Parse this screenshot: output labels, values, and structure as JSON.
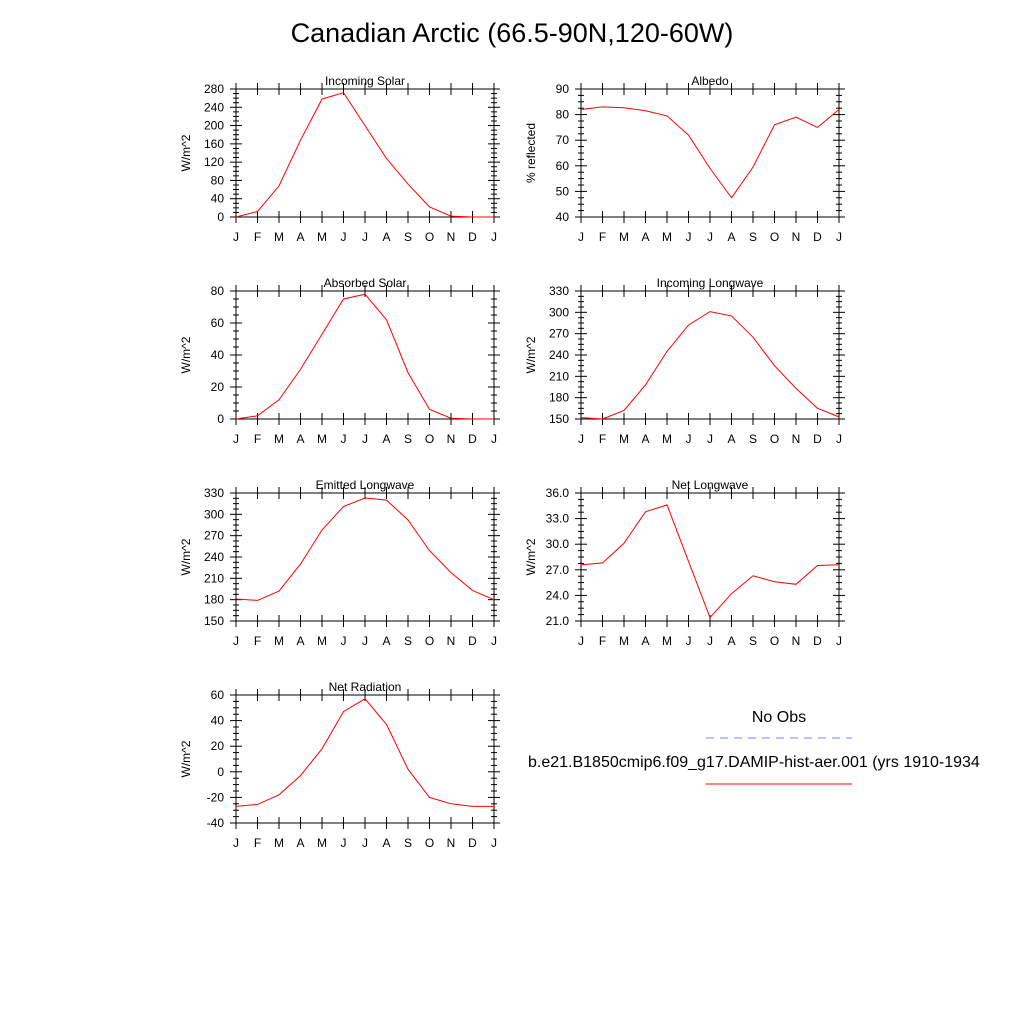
{
  "title": "Canadian Arctic (66.5-90N,120-60W)",
  "months": [
    "J",
    "F",
    "M",
    "A",
    "M",
    "J",
    "J",
    "A",
    "S",
    "O",
    "N",
    "D",
    "J"
  ],
  "series_color": "#ff0000",
  "obs_color": "#8080ff",
  "legend": {
    "obs_label": "No Obs",
    "model_label": "b.e21.B1850cmip6.f09_g17.DAMIP-hist-aer.001 (yrs 1910-1934"
  },
  "chart_data": [
    {
      "type": "line",
      "title": "Incoming Solar",
      "ylabel": "W/m^2",
      "ylim": [
        0,
        280
      ],
      "yticks": [
        0,
        40,
        80,
        120,
        160,
        200,
        240,
        280
      ],
      "ytick_labels": [
        "0",
        "40",
        "80",
        "120",
        "160",
        "200",
        "240",
        "280"
      ],
      "x": [
        "J",
        "F",
        "M",
        "A",
        "M",
        "J",
        "J",
        "A",
        "S",
        "O",
        "N",
        "D",
        "J"
      ],
      "values": [
        0,
        12,
        68,
        168,
        258,
        272,
        200,
        128,
        72,
        22,
        2,
        0,
        0
      ]
    },
    {
      "type": "line",
      "title": "Albedo",
      "ylabel": "% reflected",
      "ylim": [
        40,
        90
      ],
      "yticks": [
        40,
        50,
        60,
        70,
        80,
        90
      ],
      "ytick_labels": [
        "40",
        "50",
        "60",
        "70",
        "80",
        "90"
      ],
      "x": [
        "J",
        "F",
        "M",
        "A",
        "M",
        "J",
        "J",
        "A",
        "S",
        "O",
        "N",
        "D",
        "J"
      ],
      "values": [
        82,
        83,
        82.7,
        81.5,
        79.5,
        72,
        59,
        47.5,
        59.5,
        76,
        79,
        75,
        82
      ]
    },
    {
      "type": "line",
      "title": "Absorbed Solar",
      "ylabel": "W/m^2",
      "ylim": [
        0,
        80
      ],
      "yticks": [
        0,
        20,
        40,
        60,
        80
      ],
      "ytick_labels": [
        "0",
        "20",
        "40",
        "60",
        "80"
      ],
      "x": [
        "J",
        "F",
        "M",
        "A",
        "M",
        "J",
        "J",
        "A",
        "S",
        "O",
        "N",
        "D",
        "J"
      ],
      "values": [
        0,
        2,
        12,
        31,
        53,
        75,
        78,
        62,
        29,
        6,
        0.5,
        0,
        0
      ]
    },
    {
      "type": "line",
      "title": "Incoming Longwave",
      "ylabel": "W/m^2",
      "ylim": [
        150,
        330
      ],
      "yticks": [
        150,
        180,
        210,
        240,
        270,
        300,
        330
      ],
      "ytick_labels": [
        "150",
        "180",
        "210",
        "240",
        "270",
        "300",
        "330"
      ],
      "x": [
        "J",
        "F",
        "M",
        "A",
        "M",
        "J",
        "J",
        "A",
        "S",
        "O",
        "N",
        "D",
        "J"
      ],
      "values": [
        152,
        150,
        162,
        198,
        245,
        282,
        301,
        295,
        265,
        225,
        193,
        165,
        153
      ]
    },
    {
      "type": "line",
      "title": "Emitted Longwave",
      "ylabel": "W/m^2",
      "ylim": [
        150,
        330
      ],
      "yticks": [
        150,
        180,
        210,
        240,
        270,
        300,
        330
      ],
      "ytick_labels": [
        "150",
        "180",
        "210",
        "240",
        "270",
        "300",
        "330"
      ],
      "x": [
        "J",
        "F",
        "M",
        "A",
        "M",
        "J",
        "J",
        "A",
        "S",
        "O",
        "N",
        "D",
        "J"
      ],
      "values": [
        181,
        179,
        192,
        230,
        278,
        311,
        323,
        320,
        292,
        249,
        218,
        193,
        180
      ]
    },
    {
      "type": "line",
      "title": "Net Longwave",
      "ylabel": "W/m^2",
      "ylim": [
        21,
        36
      ],
      "yticks": [
        21,
        24,
        27,
        30,
        33,
        36
      ],
      "ytick_labels": [
        "21.0",
        "24.0",
        "27.0",
        "30.0",
        "33.0",
        "36.0"
      ],
      "x": [
        "J",
        "F",
        "M",
        "A",
        "M",
        "J",
        "J",
        "A",
        "S",
        "O",
        "N",
        "D",
        "J"
      ],
      "values": [
        27.6,
        27.8,
        30.1,
        33.8,
        34.6,
        28.0,
        21.4,
        24.2,
        26.3,
        25.6,
        25.3,
        27.5,
        27.6
      ]
    },
    {
      "type": "line",
      "title": "Net Radiation",
      "ylabel": "W/m^2",
      "ylim": [
        -40,
        60
      ],
      "yticks": [
        -40,
        -20,
        0,
        20,
        40,
        60
      ],
      "ytick_labels": [
        "-40",
        "-20",
        "0",
        "20",
        "40",
        "60"
      ],
      "x": [
        "J",
        "F",
        "M",
        "A",
        "M",
        "J",
        "J",
        "A",
        "S",
        "O",
        "N",
        "D",
        "J"
      ],
      "values": [
        -27,
        -25.5,
        -18,
        -3,
        18,
        47,
        57,
        37,
        2,
        -20,
        -25,
        -27,
        -27
      ]
    }
  ]
}
